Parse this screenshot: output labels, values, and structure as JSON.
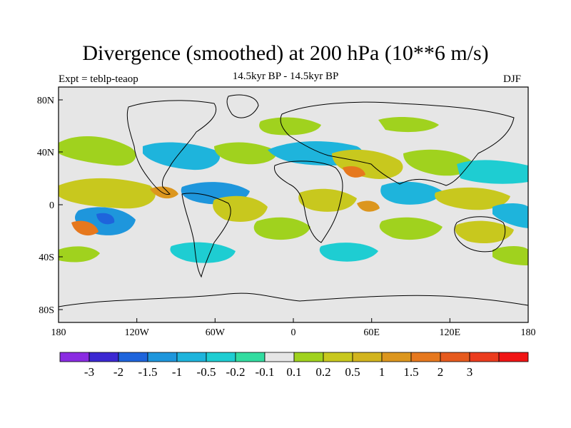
{
  "title": "Divergence (smoothed) at 200 hPa (10**6 m/s)",
  "subtitle_left": "Expt = teblp-teaop",
  "subtitle_center": "14.5kyr BP - 14.5kyr BP",
  "subtitle_right": "DJF",
  "x_ticks": [
    "180",
    "120W",
    "60W",
    "0",
    "60E",
    "120E",
    "180"
  ],
  "y_ticks": [
    "80N",
    "40N",
    "0",
    "40S",
    "80S"
  ],
  "colorbar": {
    "colors": [
      "#8a2be2",
      "#3c28d2",
      "#1e64dc",
      "#1e96dc",
      "#1eb4dc",
      "#1ecdd2",
      "#32dca0",
      "#e6e6e6",
      "#a0d21e",
      "#c8c81e",
      "#d2b41e",
      "#dc961e",
      "#e6781e",
      "#e65a1e",
      "#eb3c1e",
      "#f01414"
    ],
    "labels": [
      "-3",
      "-2",
      "-1.5",
      "-1",
      "-0.5",
      "-0.2",
      "-0.1",
      "0.1",
      "0.2",
      "0.5",
      "1",
      "1.5",
      "2",
      "3"
    ]
  }
}
